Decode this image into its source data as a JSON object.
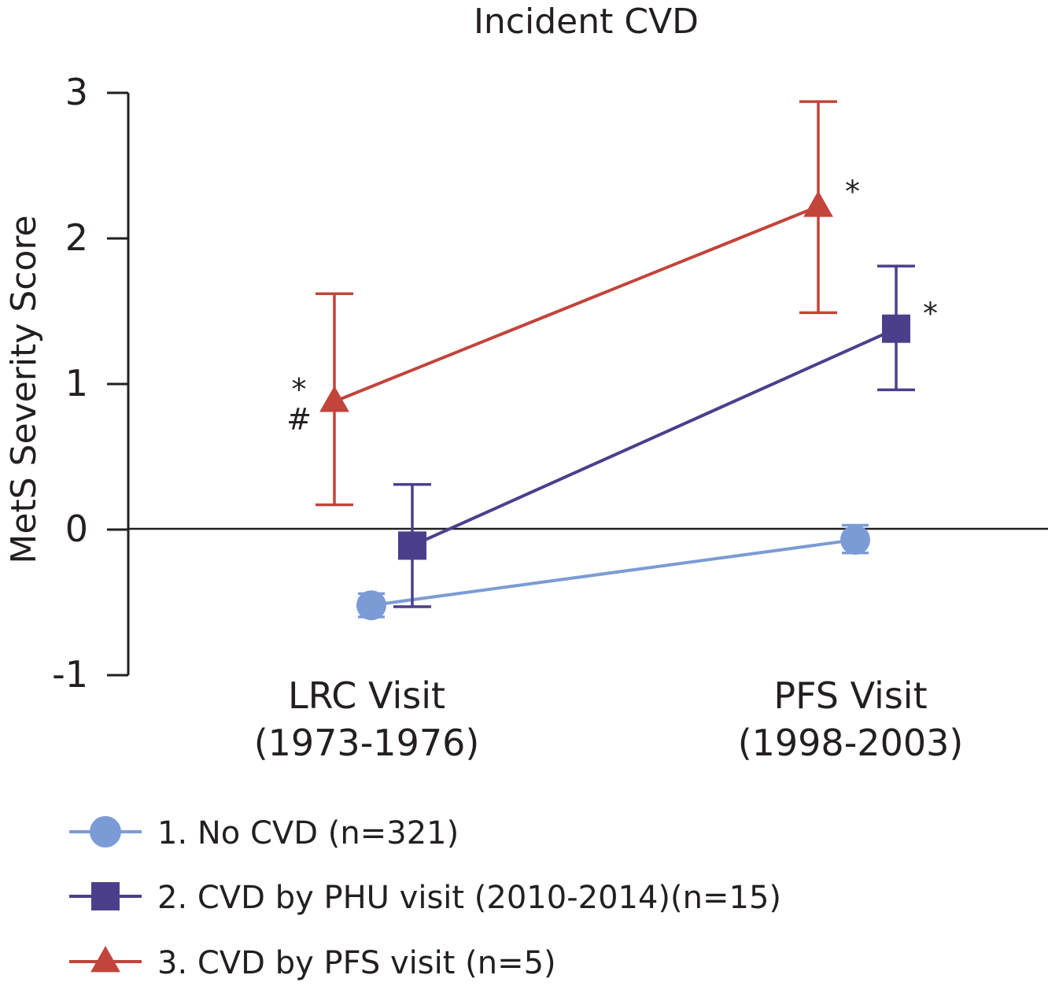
{
  "chart_data": {
    "type": "line",
    "title": "Incident CVD",
    "ylabel": "MetS Severity Score",
    "xlabel": "",
    "ylim": [
      -1,
      3
    ],
    "yticks": [
      "3",
      "2",
      "1",
      "0",
      "-1"
    ],
    "ytick_values": [
      3,
      2,
      1,
      0,
      -1
    ],
    "grid": false,
    "legend_position": "bottom-left",
    "categories": [
      {
        "line1": "LRC Visit",
        "line2": "(1973-1976)"
      },
      {
        "line1": "PFS Visit",
        "line2": "(1998-2003)"
      }
    ],
    "series": [
      {
        "name": "1.  No CVD (n=321)",
        "marker": "circle",
        "color": "#7b9bd6",
        "values": [
          -0.52,
          -0.07
        ],
        "err_low": [
          -0.6,
          -0.16
        ],
        "err_high": [
          -0.44,
          0.03
        ],
        "annotations": [
          "",
          ""
        ]
      },
      {
        "name": "2.  CVD by PHU visit (2010-2014)(n=15)",
        "marker": "square",
        "color": "#4b3f8c",
        "values": [
          -0.11,
          1.38
        ],
        "err_low": [
          -0.53,
          0.96
        ],
        "err_high": [
          0.31,
          1.81
        ],
        "annotations": [
          "",
          "*"
        ]
      },
      {
        "name": "3.  CVD by PFS visit (n=5)",
        "marker": "triangle",
        "color": "#c2443a",
        "values": [
          0.88,
          2.22
        ],
        "err_low": [
          0.17,
          1.49
        ],
        "err_high": [
          1.62,
          2.94
        ],
        "annotations": [
          "*\n#",
          "*"
        ]
      }
    ]
  }
}
